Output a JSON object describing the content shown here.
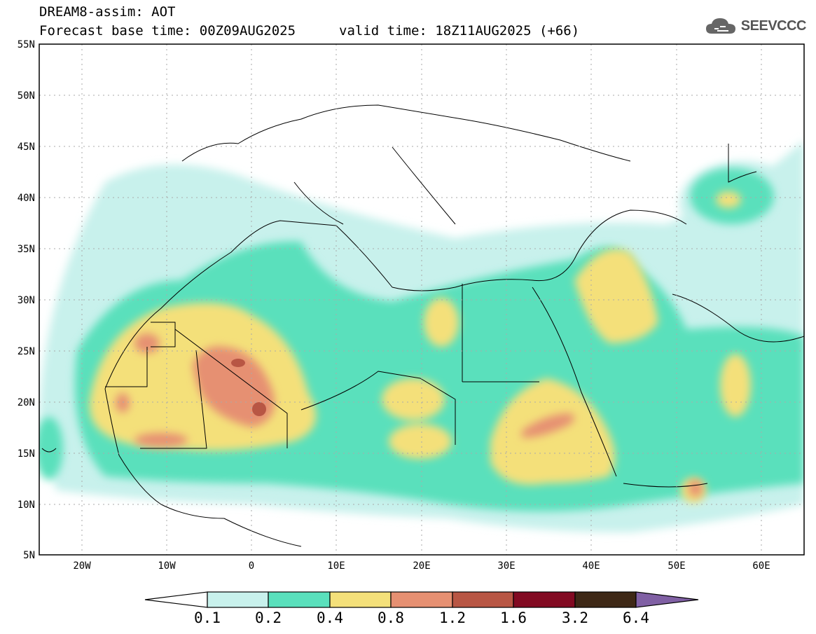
{
  "header": {
    "title_line1": "DREAM8-assim: AOT",
    "title_line2": "Forecast base time: 00Z09AUG2025",
    "valid_time": "valid time: 18Z11AUG2025 (+66)",
    "logo_text": "SEEVCCC",
    "logo_icon": "cloud-icon"
  },
  "map": {
    "lat_labels": [
      "55N",
      "50N",
      "45N",
      "40N",
      "35N",
      "30N",
      "25N",
      "20N",
      "15N",
      "10N",
      "5N"
    ],
    "lon_labels": [
      "20W",
      "10W",
      "0",
      "10E",
      "20E",
      "30E",
      "40E",
      "50E",
      "60E"
    ],
    "extent": {
      "lon_min": -25,
      "lon_max": 65,
      "lat_min": 5,
      "lat_max": 55
    }
  },
  "colorbar": {
    "labels": [
      "0.1",
      "0.2",
      "0.4",
      "0.8",
      "1.2",
      "1.6",
      "3.2",
      "6.4"
    ],
    "colors": [
      "#ffffff",
      "#c8f1ec",
      "#5ae0bc",
      "#f4e07a",
      "#e69072",
      "#b85644",
      "#820a22",
      "#3e2816",
      "#8060a4"
    ]
  }
}
